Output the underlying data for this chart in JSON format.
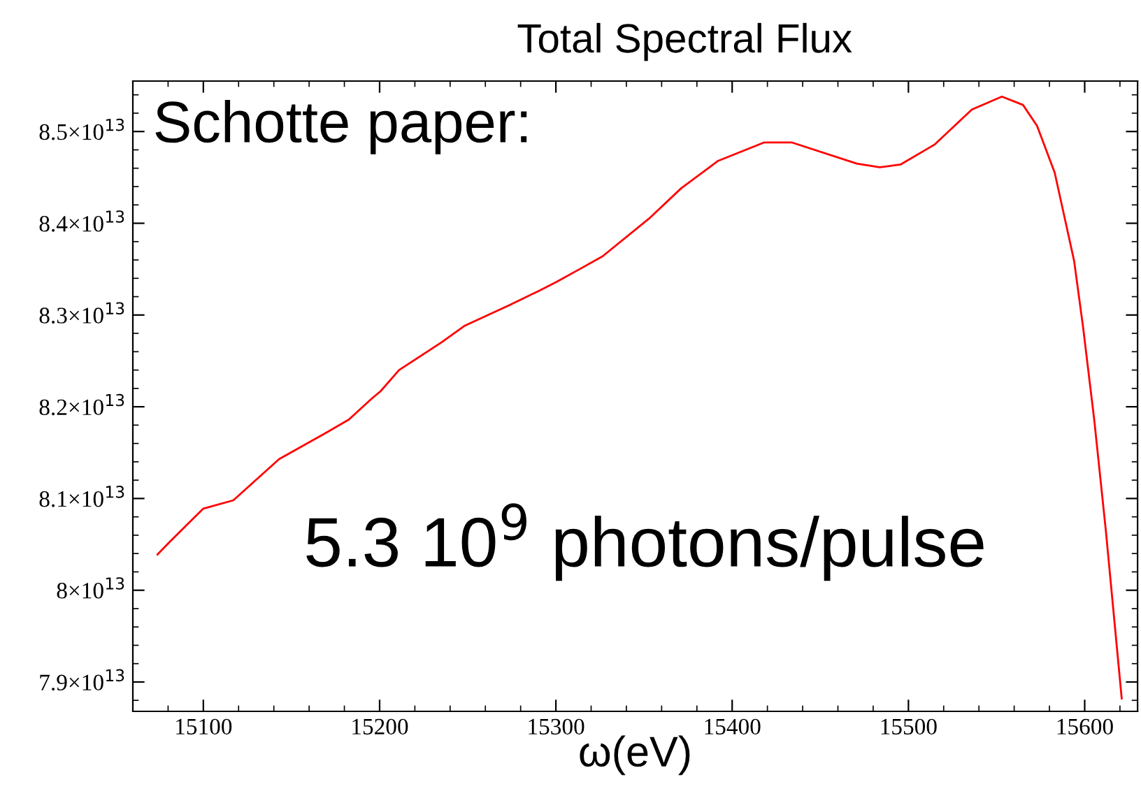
{
  "chart_data": {
    "type": "line",
    "title": "Total Spectral Flux",
    "xlabel": "ω(eV)",
    "annotations": [
      "Schotte paper:",
      "5.3 10$^{9}$ photons/pulse"
    ],
    "xlim": [
      15060,
      15630
    ],
    "xticks": [
      15100,
      15200,
      15300,
      15400,
      15500,
      15600
    ],
    "ylim": [
      78680000000000.0,
      85550000000000.0
    ],
    "yticks": [
      {
        "value": 79000000000000.0,
        "label": "7.9×10$^{13}$"
      },
      {
        "value": 80000000000000.0,
        "label": "8×10$^{13}$"
      },
      {
        "value": 81000000000000.0,
        "label": "8.1×10$^{13}$"
      },
      {
        "value": 82000000000000.0,
        "label": "8.2×10$^{13}$"
      },
      {
        "value": 83000000000000.0,
        "label": "8.3×10$^{13}$"
      },
      {
        "value": 84000000000000.0,
        "label": "8.4×10$^{13}$"
      },
      {
        "value": 85000000000000.0,
        "label": "8.5×10$^{13}$"
      }
    ],
    "grid": false,
    "legend": false,
    "marker": "none",
    "line_style": "solid",
    "series": [
      {
        "color": "#ff0000",
        "x": [
          15074,
          15080.5,
          15100,
          15117,
          15143,
          15169,
          15182.5,
          15195.6,
          15200.6,
          15211,
          15235,
          15248,
          15274,
          15290,
          15300.3,
          15313.5,
          15326.5,
          15352.8,
          15371,
          15392,
          15418,
          15434,
          15470.7,
          15483.7,
          15495.5,
          15515,
          15536,
          15553,
          15565,
          15573,
          15583,
          15594,
          15599,
          15605.4,
          15612,
          15621
        ],
        "values": [
          80390000000000.0,
          80520000000000.0,
          80890000000000.0,
          80980000000000.0,
          81430000000000.0,
          81710000000000.0,
          81860000000000.0,
          82090000000000.0,
          82170000000000.0,
          82400000000000.0,
          82700000000000.0,
          82880000000000.0,
          83110000000000.0,
          83260000000000.0,
          83360000000000.0,
          83500000000000.0,
          83640000000000.0,
          84050000000000.0,
          84380000000000.0,
          84680000000000.0,
          84880000000000.0,
          84880000000000.0,
          84650000000000.0,
          84610000000000.0,
          84640000000000.0,
          84860000000000.0,
          85240000000000.0,
          85380000000000.0,
          85290000000000.0,
          85060000000000.0,
          84550000000000.0,
          83590000000000.0,
          82880000000000.0,
          81860000000000.0,
          80650000000000.0,
          78820000000000.0
        ]
      }
    ]
  }
}
